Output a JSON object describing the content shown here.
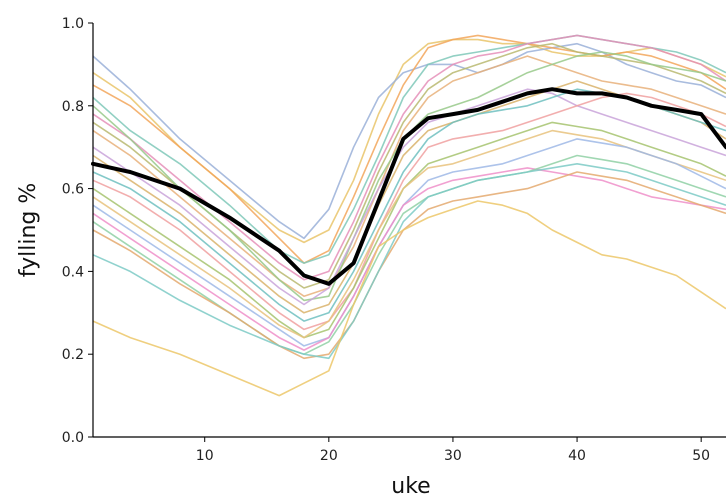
{
  "chart_data": {
    "type": "line",
    "title": "",
    "xlabel": "uke",
    "ylabel": "fylling %",
    "xlim": [
      1,
      52
    ],
    "ylim": [
      0.0,
      1.0
    ],
    "xticks": [
      10,
      20,
      30,
      40,
      50
    ],
    "yticks": [
      0.0,
      0.2,
      0.4,
      0.6,
      0.8,
      1.0
    ],
    "ytick_labels": [
      "0.0",
      "0.2",
      "0.4",
      "0.6",
      "0.8",
      "1.0"
    ],
    "grid": false,
    "legend": "none",
    "x": [
      1,
      4,
      8,
      12,
      16,
      18,
      20,
      22,
      24,
      26,
      28,
      30,
      32,
      34,
      36,
      38,
      40,
      42,
      44,
      46,
      48,
      50,
      52
    ],
    "mean_series": {
      "color": "#000000",
      "values": [
        0.66,
        0.64,
        0.6,
        0.53,
        0.45,
        0.39,
        0.37,
        0.42,
        0.57,
        0.72,
        0.77,
        0.78,
        0.79,
        0.81,
        0.83,
        0.84,
        0.83,
        0.83,
        0.82,
        0.8,
        0.79,
        0.78,
        0.7
      ]
    },
    "series": [
      {
        "color": "#e9c46a",
        "values": [
          0.88,
          0.82,
          0.7,
          0.6,
          0.5,
          0.47,
          0.5,
          0.62,
          0.78,
          0.9,
          0.95,
          0.96,
          0.96,
          0.95,
          0.95,
          0.93,
          0.92,
          0.92,
          0.93,
          0.94,
          0.92,
          0.9,
          0.87
        ]
      },
      {
        "color": "#9ab0d8",
        "values": [
          0.92,
          0.84,
          0.72,
          0.62,
          0.52,
          0.48,
          0.55,
          0.7,
          0.82,
          0.88,
          0.9,
          0.9,
          0.88,
          0.9,
          0.93,
          0.94,
          0.95,
          0.93,
          0.9,
          0.88,
          0.86,
          0.85,
          0.82
        ]
      },
      {
        "color": "#f2a65a",
        "values": [
          0.85,
          0.8,
          0.7,
          0.6,
          0.48,
          0.42,
          0.45,
          0.58,
          0.72,
          0.85,
          0.94,
          0.96,
          0.97,
          0.96,
          0.95,
          0.94,
          0.93,
          0.92,
          0.93,
          0.92,
          0.9,
          0.88,
          0.84
        ]
      },
      {
        "color": "#7fc8b8",
        "values": [
          0.82,
          0.74,
          0.66,
          0.56,
          0.45,
          0.42,
          0.44,
          0.55,
          0.68,
          0.82,
          0.9,
          0.92,
          0.93,
          0.94,
          0.95,
          0.96,
          0.97,
          0.96,
          0.95,
          0.94,
          0.93,
          0.91,
          0.88
        ]
      },
      {
        "color": "#e58fb8",
        "values": [
          0.78,
          0.72,
          0.62,
          0.52,
          0.42,
          0.38,
          0.4,
          0.52,
          0.66,
          0.78,
          0.86,
          0.9,
          0.92,
          0.93,
          0.95,
          0.96,
          0.97,
          0.96,
          0.95,
          0.94,
          0.92,
          0.9,
          0.86
        ]
      },
      {
        "color": "#b8b870",
        "values": [
          0.76,
          0.7,
          0.6,
          0.5,
          0.4,
          0.36,
          0.38,
          0.5,
          0.64,
          0.76,
          0.84,
          0.88,
          0.9,
          0.92,
          0.94,
          0.95,
          0.93,
          0.92,
          0.91,
          0.9,
          0.88,
          0.86,
          0.83
        ]
      },
      {
        "color": "#e8b07a",
        "values": [
          0.74,
          0.68,
          0.58,
          0.48,
          0.38,
          0.34,
          0.36,
          0.46,
          0.6,
          0.74,
          0.82,
          0.86,
          0.88,
          0.9,
          0.92,
          0.9,
          0.88,
          0.86,
          0.85,
          0.84,
          0.82,
          0.8,
          0.78
        ]
      },
      {
        "color": "#98c98a",
        "values": [
          0.8,
          0.72,
          0.6,
          0.5,
          0.38,
          0.33,
          0.34,
          0.48,
          0.62,
          0.72,
          0.78,
          0.8,
          0.82,
          0.85,
          0.88,
          0.9,
          0.92,
          0.93,
          0.92,
          0.9,
          0.89,
          0.88,
          0.86
        ]
      },
      {
        "color": "#c9a3d9",
        "values": [
          0.7,
          0.64,
          0.56,
          0.46,
          0.36,
          0.32,
          0.36,
          0.48,
          0.6,
          0.7,
          0.76,
          0.78,
          0.8,
          0.82,
          0.84,
          0.83,
          0.8,
          0.78,
          0.76,
          0.74,
          0.72,
          0.7,
          0.68
        ]
      },
      {
        "color": "#d9b36b",
        "values": [
          0.68,
          0.62,
          0.54,
          0.44,
          0.34,
          0.3,
          0.32,
          0.42,
          0.56,
          0.68,
          0.74,
          0.76,
          0.78,
          0.8,
          0.82,
          0.84,
          0.86,
          0.84,
          0.82,
          0.8,
          0.78,
          0.76,
          0.72
        ]
      },
      {
        "color": "#6fbfbf",
        "values": [
          0.64,
          0.6,
          0.52,
          0.42,
          0.32,
          0.28,
          0.3,
          0.4,
          0.52,
          0.64,
          0.72,
          0.76,
          0.78,
          0.79,
          0.8,
          0.82,
          0.84,
          0.83,
          0.82,
          0.8,
          0.78,
          0.76,
          0.74
        ]
      },
      {
        "color": "#f0a0a0",
        "values": [
          0.62,
          0.58,
          0.5,
          0.4,
          0.3,
          0.26,
          0.28,
          0.36,
          0.5,
          0.62,
          0.7,
          0.72,
          0.73,
          0.74,
          0.76,
          0.78,
          0.8,
          0.82,
          0.83,
          0.82,
          0.8,
          0.78,
          0.75
        ]
      },
      {
        "color": "#a6c36f",
        "values": [
          0.6,
          0.54,
          0.46,
          0.38,
          0.28,
          0.24,
          0.26,
          0.36,
          0.48,
          0.6,
          0.66,
          0.68,
          0.7,
          0.72,
          0.74,
          0.76,
          0.75,
          0.74,
          0.72,
          0.7,
          0.68,
          0.66,
          0.63
        ]
      },
      {
        "color": "#e7c27d",
        "values": [
          0.58,
          0.52,
          0.44,
          0.36,
          0.27,
          0.24,
          0.28,
          0.38,
          0.5,
          0.6,
          0.65,
          0.66,
          0.68,
          0.7,
          0.72,
          0.74,
          0.73,
          0.72,
          0.7,
          0.68,
          0.66,
          0.64,
          0.62
        ]
      },
      {
        "color": "#9fb8e6",
        "values": [
          0.56,
          0.5,
          0.42,
          0.34,
          0.26,
          0.22,
          0.24,
          0.34,
          0.46,
          0.56,
          0.62,
          0.64,
          0.65,
          0.66,
          0.68,
          0.7,
          0.72,
          0.71,
          0.7,
          0.68,
          0.66,
          0.63,
          0.6
        ]
      },
      {
        "color": "#ee8fc9",
        "values": [
          0.54,
          0.48,
          0.4,
          0.32,
          0.24,
          0.21,
          0.24,
          0.34,
          0.46,
          0.56,
          0.6,
          0.62,
          0.63,
          0.64,
          0.65,
          0.64,
          0.63,
          0.62,
          0.6,
          0.58,
          0.57,
          0.56,
          0.55
        ]
      },
      {
        "color": "#8fd0a5",
        "values": [
          0.52,
          0.46,
          0.38,
          0.3,
          0.22,
          0.2,
          0.23,
          0.32,
          0.44,
          0.54,
          0.58,
          0.6,
          0.62,
          0.63,
          0.64,
          0.66,
          0.68,
          0.67,
          0.66,
          0.64,
          0.62,
          0.6,
          0.58
        ]
      },
      {
        "color": "#e4a96f",
        "values": [
          0.5,
          0.45,
          0.37,
          0.3,
          0.22,
          0.19,
          0.2,
          0.28,
          0.4,
          0.5,
          0.55,
          0.57,
          0.58,
          0.59,
          0.6,
          0.62,
          0.64,
          0.63,
          0.62,
          0.6,
          0.58,
          0.56,
          0.54
        ]
      },
      {
        "color": "#7ccac6",
        "values": [
          0.44,
          0.4,
          0.33,
          0.27,
          0.22,
          0.2,
          0.19,
          0.28,
          0.4,
          0.52,
          0.58,
          0.6,
          0.62,
          0.63,
          0.64,
          0.65,
          0.66,
          0.65,
          0.64,
          0.62,
          0.6,
          0.58,
          0.56
        ]
      },
      {
        "color": "#ecc768",
        "values": [
          0.28,
          0.24,
          0.2,
          0.15,
          0.1,
          0.13,
          0.16,
          0.32,
          0.46,
          0.5,
          0.53,
          0.55,
          0.57,
          0.56,
          0.54,
          0.5,
          0.47,
          0.44,
          0.43,
          0.41,
          0.39,
          0.35,
          0.31
        ]
      }
    ]
  }
}
